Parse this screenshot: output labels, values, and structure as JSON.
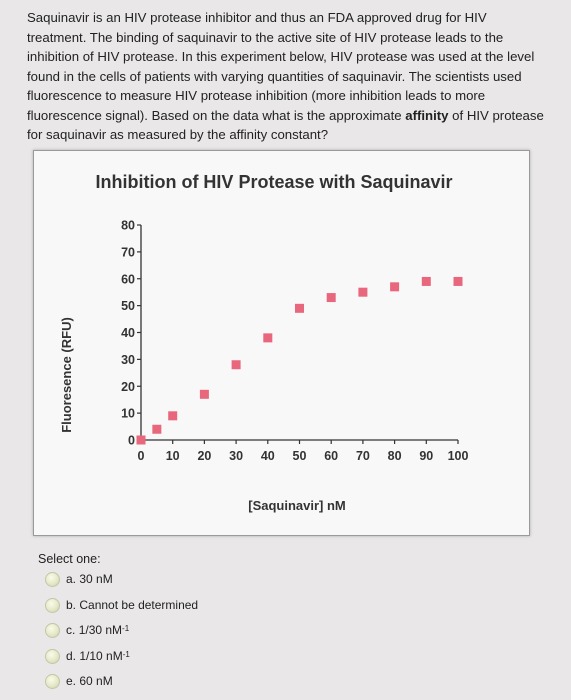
{
  "question": {
    "text_before": "Saquinavir is an HIV protease inhibitor and thus an FDA approved drug for HIV treatment. The binding of saquinavir to the active site of HIV protease leads to the inhibition of HIV protease. In this experiment below, HIV protease was used at the level found in the cells of patients with varying quantities of saquinavir. The scientists used fluorescence to measure HIV protease inhibition (more inhibition leads to more fluorescence signal). Based on the data what is the approximate ",
    "bold_word": "affinity",
    "text_after": " of HIV protease for saquinavir as measured by the affinity constant?"
  },
  "chart_data": {
    "type": "scatter",
    "title": "Inhibition of HIV Protease with Saquinavir",
    "xlabel": "[Saquinavir] nM",
    "ylabel": "Fluoresence (RFU)",
    "xlim": [
      0,
      100
    ],
    "ylim": [
      0,
      80
    ],
    "xticks": [
      "0",
      "10",
      "20",
      "30",
      "40",
      "50",
      "60",
      "70",
      "80",
      "90",
      "100"
    ],
    "yticks": [
      "0",
      "10",
      "20",
      "30",
      "40",
      "50",
      "60",
      "70",
      "80"
    ],
    "grid": false,
    "marker_color": "#e8677c",
    "x": [
      0,
      5,
      10,
      20,
      30,
      40,
      50,
      60,
      70,
      80,
      90,
      100
    ],
    "y": [
      0,
      4,
      9,
      17,
      28,
      38,
      49,
      53,
      55,
      57,
      59,
      59
    ]
  },
  "select_label": "Select one:",
  "options": [
    {
      "letter": "a.",
      "text": "30 nM",
      "sup": ""
    },
    {
      "letter": "b.",
      "text": "Cannot be determined",
      "sup": ""
    },
    {
      "letter": "c.",
      "text": "1/30 nM",
      "sup": "-1"
    },
    {
      "letter": "d.",
      "text": "1/10 nM",
      "sup": "-1"
    },
    {
      "letter": "e.",
      "text": "60 nM",
      "sup": ""
    }
  ]
}
